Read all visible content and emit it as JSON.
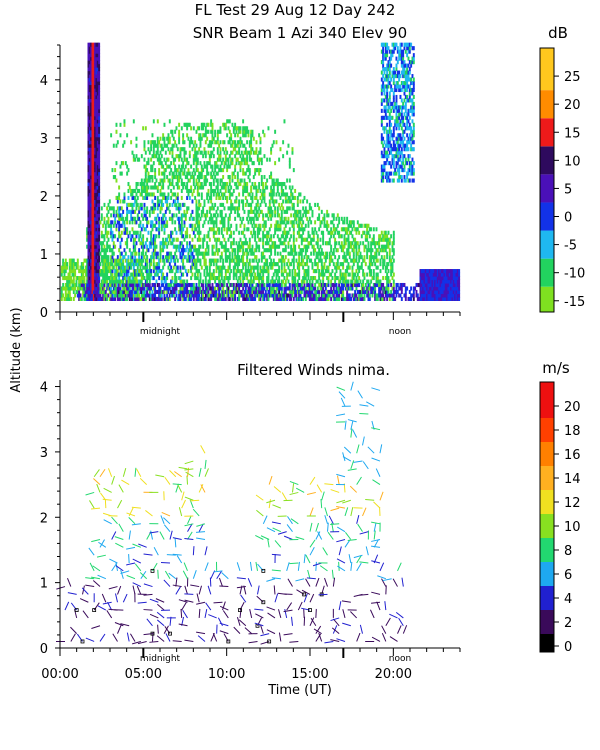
{
  "header": {
    "title_line1": "FL Test  29 Aug 12 Day 242",
    "title_line2": "SNR Beam 1 Azi 340 Elev 90"
  },
  "shared": {
    "ylabel": "Altitude (km)",
    "xlabel": "Time (UT)",
    "midnight_label": "midnight",
    "noon_label": "noon"
  },
  "chart_data": [
    {
      "type": "heatmap",
      "title": "SNR Beam 1 Azi 340 Elev 90",
      "ylabel": "Altitude (km)",
      "xlim": [
        0,
        24
      ],
      "ylim": [
        0,
        4.6
      ],
      "yticks": [
        0,
        1,
        2,
        3,
        4
      ],
      "x_markers": {
        "midnight": 5.0,
        "noon": 17.0
      },
      "colorbar": {
        "unit": "dB",
        "ticks": [
          -15,
          -10,
          -5,
          0,
          5,
          10,
          15,
          20,
          25
        ],
        "range": [
          -17,
          30
        ],
        "bins": [
          {
            "from": -17,
            "to": -12.5,
            "color": "#7fe020"
          },
          {
            "from": -12.5,
            "to": -7.5,
            "color": "#22d35f"
          },
          {
            "from": -7.5,
            "to": -2.5,
            "color": "#1fb8f0"
          },
          {
            "from": -2.5,
            "to": 2.5,
            "color": "#1232e8"
          },
          {
            "from": 2.5,
            "to": 7.5,
            "color": "#4a10b8"
          },
          {
            "from": 7.5,
            "to": 12.5,
            "color": "#2e0a5e"
          },
          {
            "from": 12.5,
            "to": 17.5,
            "color": "#ee1a1a"
          },
          {
            "from": 17.5,
            "to": 22.5,
            "color": "#ff8c00"
          },
          {
            "from": 22.5,
            "to": 30,
            "color": "#ffc81e"
          }
        ]
      }
    },
    {
      "type": "scatter",
      "title": "Filtered Winds nima.",
      "ylabel": "Altitude (km)",
      "xlabel": "Time (UT)",
      "xlim": [
        0,
        24
      ],
      "ylim": [
        0,
        4.1
      ],
      "xticks": [
        0,
        5,
        10,
        15,
        20
      ],
      "xtick_labels": [
        "00:00",
        "05:00",
        "10:00",
        "15:00",
        "20:00"
      ],
      "yticks": [
        0,
        1,
        2,
        3,
        4
      ],
      "x_markers": {
        "midnight": 5.0,
        "noon": 17.0
      },
      "colorbar": {
        "unit": "m/s",
        "ticks": [
          0,
          2,
          4,
          6,
          8,
          10,
          12,
          14,
          16,
          18,
          20
        ],
        "range": [
          -0.5,
          22
        ],
        "bins": [
          {
            "from": -0.5,
            "to": 1,
            "color": "#000000"
          },
          {
            "from": 1,
            "to": 3,
            "color": "#3a0a5a"
          },
          {
            "from": 3,
            "to": 5,
            "color": "#2020d0"
          },
          {
            "from": 5,
            "to": 7,
            "color": "#1ea8f0"
          },
          {
            "from": 7,
            "to": 9,
            "color": "#22d870"
          },
          {
            "from": 9,
            "to": 11,
            "color": "#88e020"
          },
          {
            "from": 11,
            "to": 13,
            "color": "#f0e020"
          },
          {
            "from": 13,
            "to": 15,
            "color": "#ffb020"
          },
          {
            "from": 15,
            "to": 17,
            "color": "#ff8000"
          },
          {
            "from": 17,
            "to": 19,
            "color": "#ff4000"
          },
          {
            "from": 19,
            "to": 22,
            "color": "#ee1010"
          }
        ]
      }
    }
  ]
}
